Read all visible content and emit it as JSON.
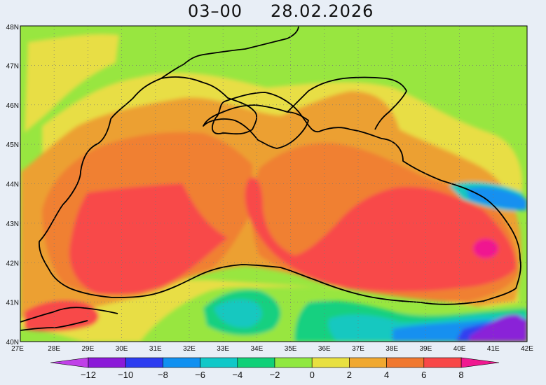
{
  "title": {
    "time": "03–00",
    "date": "28.02.2026"
  },
  "map": {
    "lon_min": 27,
    "lon_max": 42,
    "lat_min": 40,
    "lat_max": 48,
    "lon_ticks": [
      "27E",
      "28E",
      "29E",
      "30E",
      "31E",
      "32E",
      "33E",
      "34E",
      "35E",
      "36E",
      "37E",
      "38E",
      "39E",
      "40E",
      "41E",
      "42E"
    ],
    "lat_ticks": [
      "40N",
      "41N",
      "42N",
      "43N",
      "44N",
      "45N",
      "46N",
      "47N",
      "48N"
    ],
    "gridlines": "dotted"
  },
  "colorbar": {
    "ticks": [
      "−12",
      "−10",
      "−8",
      "−6",
      "−4",
      "−2",
      "0",
      "2",
      "4",
      "6",
      "8"
    ],
    "colors": [
      "#8b1ad8",
      "#2c3cf0",
      "#1090f0",
      "#10c8c8",
      "#10d078",
      "#90e840",
      "#e8e040",
      "#f0a830",
      "#f07830",
      "#f84848"
    ],
    "under_color": "#c040e8",
    "over_color": "#f01890"
  },
  "colors": {
    "land_green": "#98e640",
    "yellow": "#e8de44",
    "orange_light": "#eca032",
    "orange": "#f08030",
    "red": "#f84848",
    "magenta": "#f01890",
    "cyan": "#18c8c0",
    "teal_green": "#18d080",
    "blue": "#1890f0",
    "deep_blue": "#3040f0",
    "purple": "#8a20d8",
    "coast": "#000000"
  }
}
